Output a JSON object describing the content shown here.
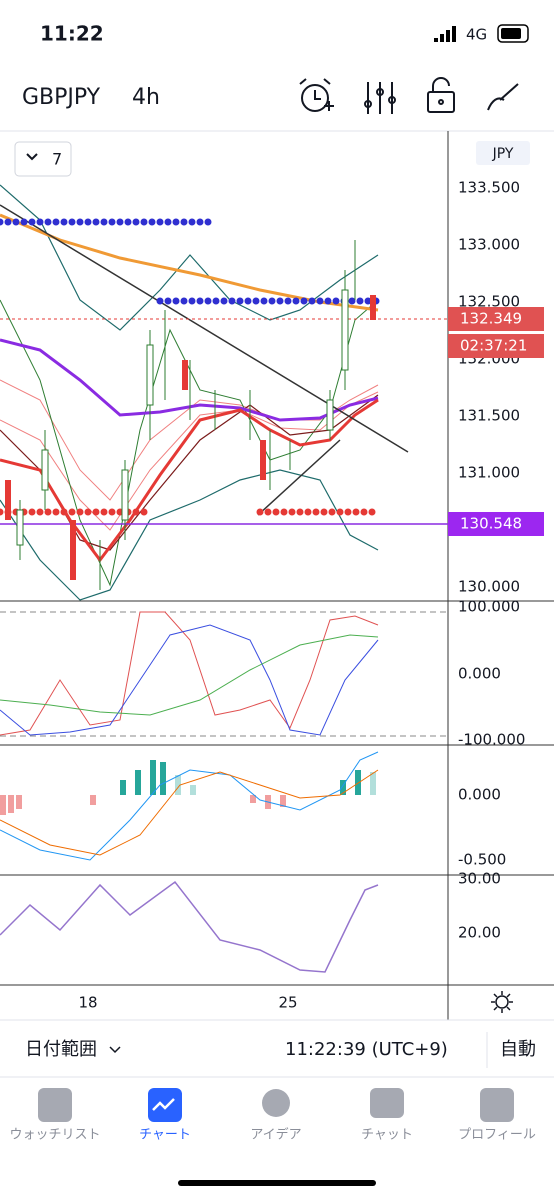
{
  "status_bar": {
    "time": "11:22",
    "network": "4G"
  },
  "header": {
    "symbol": "GBPJPY",
    "interval": "4h"
  },
  "chart": {
    "indicator_count": "7",
    "currency": "JPY",
    "price_ticks": [
      "133.500",
      "133.000",
      "132.500",
      "132.000",
      "131.500",
      "131.000",
      "130.000"
    ],
    "last_price": "132.349",
    "countdown": "02:37:21",
    "line_price": "130.548",
    "oscillator_ticks": [
      "100.000",
      "0.000",
      "-100.000"
    ],
    "macd_ticks": [
      "0.000",
      "-0.500"
    ],
    "rsi_ticks": [
      "30.00",
      "20.00"
    ],
    "date_ticks": [
      "18",
      "25"
    ]
  },
  "footer": {
    "date_range": "日付範囲",
    "clock": "11:22:39 (UTC+9)",
    "auto": "自動"
  },
  "tabs": [
    "ウォッチリスト",
    "チャート",
    "アイデア",
    "チャット",
    "プロフィール"
  ]
}
